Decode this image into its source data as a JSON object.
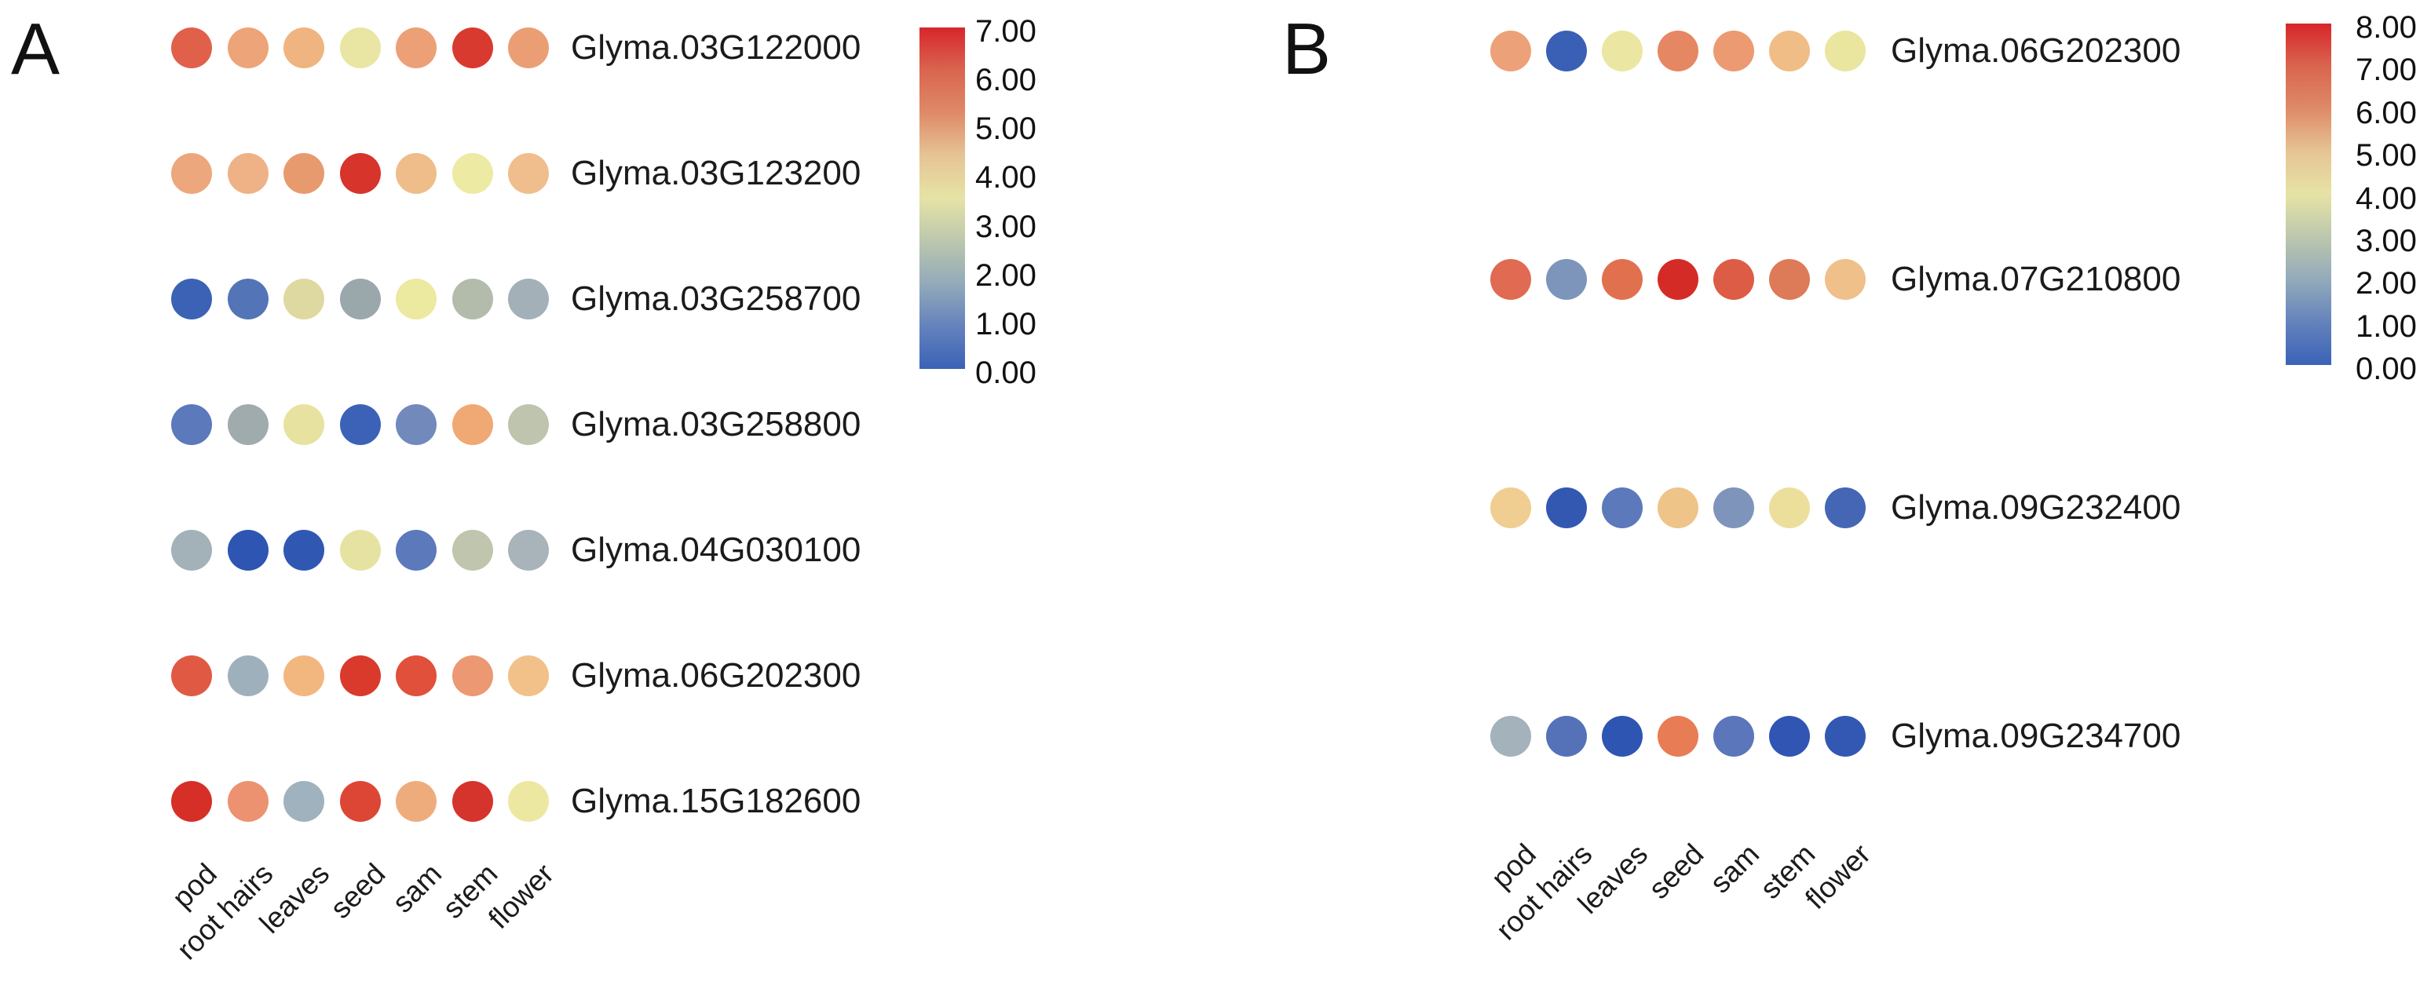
{
  "chart_data": [
    {
      "type": "heatmap",
      "panel": "A",
      "title": "A",
      "x_categories": [
        "pod",
        "root hairs",
        "leaves",
        "seed",
        "sam",
        "stem",
        "flower"
      ],
      "rows": [
        "Glyma.03G122000",
        "Glyma.03G123200",
        "Glyma.03G258700",
        "Glyma.03G258800",
        "Glyma.04G030100",
        "Glyma.06G202300",
        "Glyma.15G182600"
      ],
      "values": [
        [
          5.9,
          4.9,
          4.4,
          3.2,
          5.0,
          6.6,
          5.0
        ],
        [
          4.8,
          4.5,
          5.2,
          6.7,
          4.2,
          3.2,
          4.2
        ],
        [
          0.4,
          0.9,
          3.5,
          2.1,
          3.2,
          2.4,
          2.0
        ],
        [
          1.0,
          2.1,
          3.3,
          0.4,
          1.4,
          4.6,
          2.5
        ],
        [
          2.0,
          0.1,
          0.2,
          3.3,
          1.0,
          2.5,
          2.1
        ],
        [
          6.0,
          2.0,
          4.4,
          6.6,
          6.2,
          5.1,
          4.2
        ],
        [
          6.8,
          5.2,
          2.0,
          6.4,
          4.6,
          6.7,
          3.2
        ]
      ],
      "dot_colors": [
        [
          "#e0604a",
          "#eda478",
          "#f0b480",
          "#e9e6a4",
          "#eda076",
          "#d93a30",
          "#eb9e74"
        ],
        [
          "#eca77c",
          "#eeb286",
          "#e89a6f",
          "#d7342c",
          "#efbd8a",
          "#edeaa4",
          "#efbe8c"
        ],
        [
          "#3c62b5",
          "#5375b7",
          "#ded9a0",
          "#9aa7ab",
          "#ece9a0",
          "#b3bcab",
          "#a3b0b8"
        ],
        [
          "#5b79bb",
          "#9fabad",
          "#e7e2a0",
          "#3b62b7",
          "#7289bb",
          "#f0a875",
          "#bec4ad"
        ],
        [
          "#a3b1b9",
          "#2f55b2",
          "#3058b3",
          "#e6e3a2",
          "#5b79bb",
          "#c0c5ae",
          "#a8b3ba"
        ],
        [
          "#e05a43",
          "#9fb0bd",
          "#f2b77f",
          "#d93a2b",
          "#e0503a",
          "#ec9873",
          "#f2c089"
        ],
        [
          "#d62f28",
          "#ec9270",
          "#9fb2bd",
          "#dd4634",
          "#eeac7d",
          "#d5342c",
          "#ece8a2"
        ]
      ],
      "colorbar": {
        "min": 0,
        "max": 7,
        "ticks": [
          "7.00",
          "6.00",
          "5.00",
          "4.00",
          "3.00",
          "2.00",
          "1.00",
          "0.00"
        ],
        "gradient_top_to_bottom": [
          "#d7262b",
          "#d9654f",
          "#de8a68",
          "#e6c494",
          "#e6e3a5",
          "#bcc7ad",
          "#93aaba",
          "#6482bc",
          "#3a62b6"
        ]
      },
      "legend_position": "right",
      "grid": false
    },
    {
      "type": "heatmap",
      "panel": "B",
      "title": "B",
      "x_categories": [
        "pod",
        "root hairs",
        "leaves",
        "seed",
        "sam",
        "stem",
        "flower"
      ],
      "rows": [
        "Glyma.06G202300",
        "Glyma.07G210800",
        "Glyma.09G232400",
        "Glyma.09G234700"
      ],
      "values": [
        [
          5.7,
          0.5,
          3.7,
          6.3,
          5.8,
          4.9,
          3.7
        ],
        [
          6.5,
          1.9,
          6.5,
          7.7,
          6.8,
          6.3,
          4.8
        ],
        [
          4.6,
          0.4,
          1.2,
          4.8,
          1.9,
          4.2,
          0.8
        ],
        [
          2.3,
          1.1,
          0.3,
          6.0,
          1.2,
          0.4,
          0.5
        ]
      ],
      "dot_colors": [
        [
          "#eda178",
          "#3a60b5",
          "#ebe7a2",
          "#e58762",
          "#ec9a72",
          "#f0bd87",
          "#eae6a0"
        ],
        [
          "#e06a52",
          "#7d95bb",
          "#e1704f",
          "#d52b26",
          "#dd5c45",
          "#dd7a58",
          "#efc08a"
        ],
        [
          "#f0cd90",
          "#3358b2",
          "#5b79bb",
          "#eec488",
          "#7e94ba",
          "#ecdf9c",
          "#4466b5"
        ],
        [
          "#a3b2bb",
          "#5572b8",
          "#2f55b2",
          "#e87c55",
          "#5b76ba",
          "#3055b3",
          "#3358b4"
        ]
      ],
      "colorbar": {
        "min": 0,
        "max": 8,
        "ticks": [
          "8.00",
          "7.00",
          "6.00",
          "5.00",
          "4.00",
          "3.00",
          "2.00",
          "1.00",
          "0.00"
        ],
        "gradient_top_to_bottom": [
          "#d7262b",
          "#d9654f",
          "#de8a68",
          "#e6c494",
          "#e6e3a5",
          "#bcc7ad",
          "#93aaba",
          "#6482bc",
          "#3a62b6"
        ]
      },
      "legend_position": "right",
      "grid": false
    }
  ]
}
